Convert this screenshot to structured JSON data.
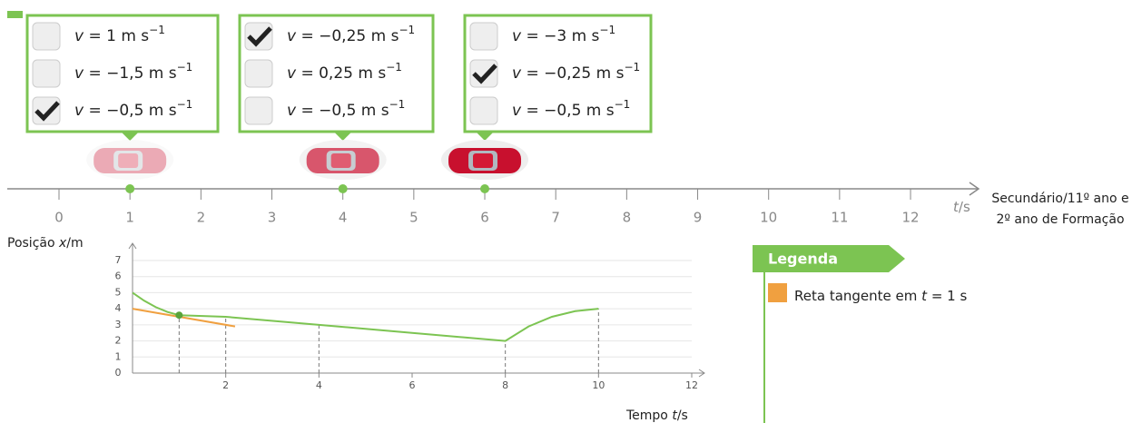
{
  "quiz": [
    {
      "car": {
        "t": 1,
        "opacity": 0.35
      },
      "options": [
        {
          "symbol": "v",
          "text": " = 1 m s",
          "exponent": "−1",
          "checked": false
        },
        {
          "symbol": "v",
          "text": " = −1,5 m s",
          "exponent": "−1",
          "checked": false
        },
        {
          "symbol": "v",
          "text": " = −0,5 m s",
          "exponent": "−1",
          "checked": true
        }
      ]
    },
    {
      "car": {
        "t": 4,
        "opacity": 0.7
      },
      "options": [
        {
          "symbol": "v",
          "text": " = −0,25 m s",
          "exponent": "−1",
          "checked": true
        },
        {
          "symbol": "v",
          "text": " = 0,25 m s",
          "exponent": "−1",
          "checked": false
        },
        {
          "symbol": "v",
          "text": " = −0,5 m s",
          "exponent": "−1",
          "checked": false
        }
      ]
    },
    {
      "car": {
        "t": 6,
        "opacity": 1
      },
      "options": [
        {
          "symbol": "v",
          "text": " = −3 m s",
          "exponent": "−1",
          "checked": false
        },
        {
          "symbol": "v",
          "text": " = −0,25 m s",
          "exponent": "−1",
          "checked": true
        },
        {
          "symbol": "v",
          "text": " = −0,5 m s",
          "exponent": "−1",
          "checked": false
        }
      ]
    }
  ],
  "timeline": {
    "ticks": [
      0,
      1,
      2,
      3,
      4,
      5,
      6,
      7,
      8,
      9,
      10,
      11,
      12
    ],
    "axis_label": {
      "symbol": "t",
      "unit": "/s"
    }
  },
  "level": "Secundário/11º ano e 2º ano de Formação",
  "graph": {
    "y_label": {
      "prefix": "Posição ",
      "symbol": "x",
      "unit": "/m"
    },
    "x_label": {
      "prefix": "Tempo ",
      "symbol": "t",
      "unit": "/s"
    },
    "xlim": [
      0,
      12
    ],
    "ylim": [
      0,
      7
    ],
    "xticks": [
      2,
      4,
      6,
      8,
      10,
      12
    ],
    "yticks": [
      0,
      1,
      2,
      3,
      4,
      5,
      6,
      7
    ],
    "curve": {
      "color": "#7cc452",
      "x": [
        0,
        0.25,
        0.5,
        0.75,
        1,
        2,
        4,
        6,
        8,
        8.5,
        9,
        9.5,
        10
      ],
      "y": [
        5,
        4.5,
        4.1,
        3.8,
        3.6,
        3.5,
        3,
        2.5,
        2,
        2.9,
        3.5,
        3.85,
        4
      ]
    },
    "tangent": {
      "color": "#f0a040",
      "x": [
        0,
        2.2
      ],
      "y": [
        4,
        2.9
      ]
    },
    "marker": {
      "x": 1,
      "y": 3.6
    },
    "guides": [
      1,
      2,
      4,
      8,
      10
    ]
  },
  "legend": {
    "title": "Legenda",
    "entry": {
      "text": "Reta tangente em ",
      "symbol": "t",
      "rest": " = 1 s"
    }
  }
}
